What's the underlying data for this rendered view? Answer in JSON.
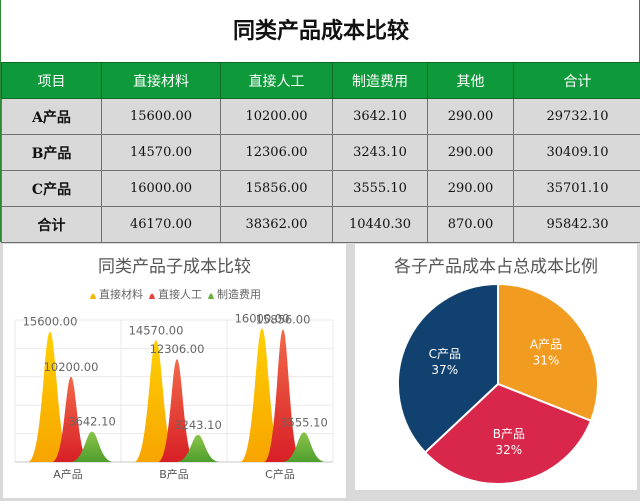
{
  "title": "同类产品成本比较",
  "table": {
    "headers": [
      "项目",
      "直接材料",
      "直接人工",
      "制造费用",
      "其他",
      "合计"
    ],
    "rows": [
      [
        "A产品",
        "15600.00",
        "10200.00",
        "3642.10",
        "290.00",
        "29732.10"
      ],
      [
        "B产品",
        "14570.00",
        "12306.00",
        "3243.10",
        "290.00",
        "30409.10"
      ],
      [
        "C产品",
        "16000.00",
        "15856.00",
        "3555.10",
        "290.00",
        "35701.10"
      ],
      [
        "合计",
        "46170.00",
        "38362.00",
        "10440.30",
        "870.00",
        "95842.30"
      ]
    ]
  },
  "chart_data": [
    {
      "type": "area",
      "title": "同类产品子成本比较",
      "categories": [
        "A产品",
        "B产品",
        "C产品"
      ],
      "series": [
        {
          "name": "直接材料",
          "values": [
            15600.0,
            14570.0,
            16000.0
          ],
          "color": "#f7b500"
        },
        {
          "name": "直接人工",
          "values": [
            10200.0,
            12306.0,
            15856.0
          ],
          "color": "#e8433a"
        },
        {
          "name": "制造费用",
          "values": [
            3642.1,
            3243.1,
            3555.1
          ],
          "color": "#6ab33e"
        }
      ],
      "data_labels": [
        [
          "15600.00",
          "10200.00",
          "3642.10"
        ],
        [
          "14570.00",
          "12306.00",
          "3243.10"
        ],
        [
          "16000.00",
          "15856.00",
          "3555.10"
        ]
      ],
      "ylim": [
        0,
        17000
      ],
      "grid": true,
      "legend": "top"
    },
    {
      "type": "pie",
      "title": "各子产品成本占总成本比例",
      "slices": [
        {
          "label": "A产品",
          "value": 31,
          "display": "31%",
          "color": "#f29b21"
        },
        {
          "label": "B产品",
          "value": 32,
          "display": "32%",
          "color": "#d8274a"
        },
        {
          "label": "C产品",
          "value": 37,
          "display": "37%",
          "color": "#11416e"
        }
      ]
    }
  ]
}
